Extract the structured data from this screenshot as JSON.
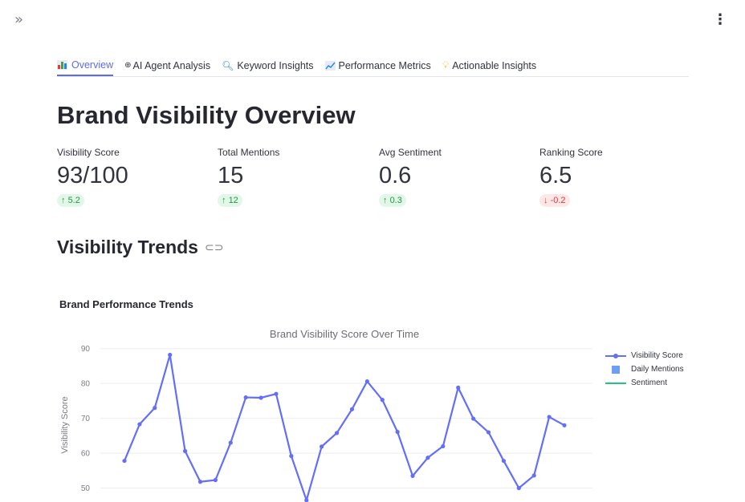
{
  "header": {
    "sidebar_toggle_glyph": "»",
    "menu_glyph": "⋮"
  },
  "tabs": [
    {
      "label": "Overview",
      "icon": "bar-chart-icon",
      "active": true
    },
    {
      "label": "AI Agent Analysis",
      "icon": "agent-icon",
      "active": false
    },
    {
      "label": "Keyword Insights",
      "icon": "magnifier-icon",
      "active": false
    },
    {
      "label": "Performance Metrics",
      "icon": "line-chart-icon",
      "active": false
    },
    {
      "label": "Actionable Insights",
      "icon": "lightbulb-icon",
      "active": false
    }
  ],
  "page": {
    "title": "Brand Visibility Overview"
  },
  "metrics": [
    {
      "label": "Visibility Score",
      "value": "93/100",
      "delta": "5.2",
      "direction": "up"
    },
    {
      "label": "Total Mentions",
      "value": "15",
      "delta": "12",
      "direction": "up"
    },
    {
      "label": "Avg Sentiment",
      "value": "0.6",
      "delta": "0.3",
      "direction": "up"
    },
    {
      "label": "Ranking Score",
      "value": "6.5",
      "delta": "-0.2",
      "direction": "down"
    }
  ],
  "section": {
    "title": "Visibility Trends"
  },
  "chart_section": {
    "heading": "Brand Performance Trends"
  },
  "colors": {
    "accent": "#5c6bf1",
    "series_line": "#636efa",
    "bar_series": "#6d9ef4",
    "sentiment_line": "#26c281"
  },
  "chart_data": {
    "type": "line",
    "title": "Brand Visibility Score Over Time",
    "ylabel": "Visibility Score",
    "xlabel": "",
    "ylim": [
      46,
      92
    ],
    "yticks": [
      50,
      60,
      70,
      80,
      90
    ],
    "legend": [
      "Visibility Score",
      "Daily Mentions",
      "Sentiment"
    ],
    "series": [
      {
        "name": "Visibility Score",
        "values": [
          57.8,
          68.3,
          73.0,
          88.2,
          60.6,
          51.8,
          52.3,
          63.0,
          76.0,
          75.9,
          77.0,
          59.2,
          46.5,
          61.9,
          65.8,
          72.6,
          80.6,
          75.3,
          66.1,
          53.5,
          58.7,
          62.0,
          78.8,
          69.9,
          66.0,
          57.8,
          50.0,
          53.6,
          70.4,
          68.0
        ]
      }
    ]
  }
}
